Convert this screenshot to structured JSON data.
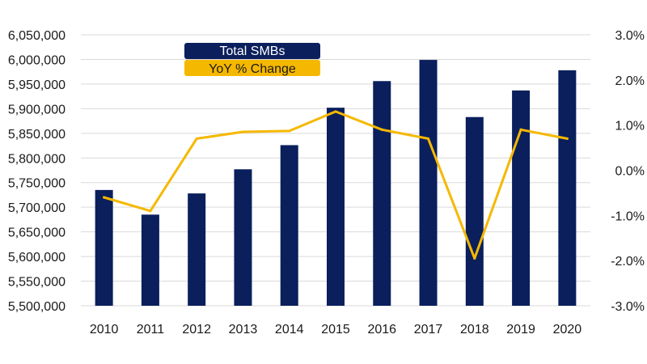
{
  "chart_data": {
    "type": "bar",
    "categories": [
      "2010",
      "2011",
      "2012",
      "2013",
      "2014",
      "2015",
      "2016",
      "2017",
      "2018",
      "2019",
      "2020"
    ],
    "series": [
      {
        "name": "Total SMBs",
        "type": "bar",
        "axis": "left",
        "color": "#0a1f5c",
        "values": [
          5735000,
          5685000,
          5728000,
          5777000,
          5826000,
          5902000,
          5956000,
          5999000,
          5883000,
          5937000,
          5978000
        ]
      },
      {
        "name": "YoY % Change",
        "type": "line",
        "axis": "right",
        "color": "#f5b800",
        "values": [
          -0.6,
          -0.9,
          0.7,
          0.85,
          0.87,
          1.3,
          0.9,
          0.7,
          -1.95,
          0.9,
          0.7
        ]
      }
    ],
    "y_left": {
      "ylim": [
        5500000,
        6050000
      ],
      "ticks": [
        5500000,
        5550000,
        5600000,
        5650000,
        5700000,
        5750000,
        5800000,
        5850000,
        5900000,
        5950000,
        6000000,
        6050000
      ],
      "tick_labels": [
        "5,500,000",
        "5,550,000",
        "5,600,000",
        "5,650,000",
        "5,700,000",
        "5,750,000",
        "5,800,000",
        "5,850,000",
        "5,900,000",
        "5,950,000",
        "6,000,000",
        "6,050,000"
      ]
    },
    "y_right": {
      "ylim": [
        -3.0,
        3.0
      ],
      "ticks": [
        -3,
        -2,
        -1,
        0,
        1,
        2,
        3
      ],
      "tick_labels": [
        "-3.0%",
        "-2.0%",
        "-1.0%",
        "0.0%",
        "1.0%",
        "2.0%",
        "3.0%"
      ]
    },
    "gridlines": true,
    "legend_position": "top-left"
  }
}
